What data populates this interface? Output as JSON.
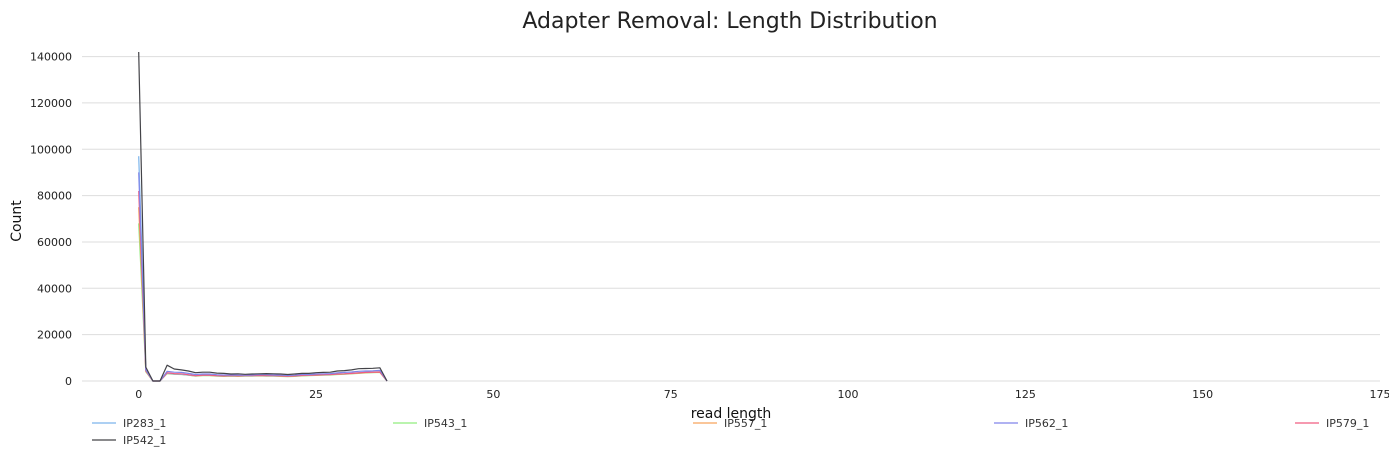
{
  "chart_data": {
    "type": "line",
    "title": "Adapter Removal: Length Distribution",
    "xlabel": "read length",
    "ylabel": "Count",
    "xlim": [
      -8,
      175
    ],
    "ylim": [
      0,
      145000
    ],
    "xticks": [
      0,
      25,
      50,
      75,
      100,
      125,
      150,
      175
    ],
    "yticks": [
      0,
      20000,
      40000,
      60000,
      80000,
      100000,
      120000,
      140000
    ],
    "grid": true,
    "legend_position": "bottom",
    "series": [
      {
        "name": "IP283_1",
        "color": "#7cb5ec",
        "x": [
          0,
          1,
          2,
          3,
          4,
          5,
          6,
          7,
          8,
          9,
          10,
          11,
          12,
          13,
          14,
          15,
          16,
          17,
          18,
          19,
          20,
          21,
          22,
          23,
          24,
          25,
          26,
          27,
          28,
          29,
          30,
          31,
          32,
          33,
          34,
          35
        ],
        "y": [
          97000,
          5000,
          0,
          0,
          3400,
          3000,
          2900,
          2600,
          2300,
          2500,
          2500,
          2300,
          2200,
          2300,
          2200,
          2300,
          2300,
          2400,
          2300,
          2300,
          2200,
          2100,
          2200,
          2400,
          2500,
          2600,
          2700,
          2800,
          3000,
          3100,
          3300,
          3600,
          3800,
          3900,
          4000,
          0
        ]
      },
      {
        "name": "IP542_1",
        "color": "#434348",
        "x": [
          0,
          1,
          2,
          3,
          4,
          5,
          6,
          7,
          8,
          9,
          10,
          11,
          12,
          13,
          14,
          15,
          16,
          17,
          18,
          19,
          20,
          21,
          22,
          23,
          24,
          25,
          26,
          27,
          28,
          29,
          30,
          31,
          32,
          33,
          34,
          35
        ],
        "y": [
          142000,
          6000,
          0,
          0,
          6800,
          5200,
          4800,
          4300,
          3600,
          3800,
          3800,
          3400,
          3300,
          3000,
          3100,
          2900,
          3000,
          3100,
          3200,
          3100,
          3000,
          2800,
          3000,
          3300,
          3300,
          3600,
          3700,
          3800,
          4300,
          4500,
          4800,
          5300,
          5400,
          5500,
          5700,
          0
        ]
      },
      {
        "name": "IP543_1",
        "color": "#90ed7d",
        "x": [
          0,
          1,
          2,
          3,
          4,
          5,
          6,
          7,
          8,
          9,
          10,
          11,
          12,
          13,
          14,
          15,
          16,
          17,
          18,
          19,
          20,
          21,
          22,
          23,
          24,
          25,
          26,
          27,
          28,
          29,
          30,
          31,
          32,
          33,
          34,
          35
        ],
        "y": [
          68000,
          4000,
          0,
          0,
          3200,
          2900,
          2800,
          2500,
          2100,
          2300,
          2300,
          2100,
          2000,
          2100,
          2000,
          2100,
          2100,
          2200,
          2100,
          2100,
          2000,
          1900,
          2000,
          2200,
          2300,
          2400,
          2500,
          2600,
          2800,
          2900,
          3100,
          3300,
          3500,
          3600,
          3700,
          0
        ]
      },
      {
        "name": "IP557_1",
        "color": "#f7a35c",
        "x": [
          0,
          1,
          2,
          3,
          4,
          5,
          6,
          7,
          8,
          9,
          10,
          11,
          12,
          13,
          14,
          15,
          16,
          17,
          18,
          19,
          20,
          21,
          22,
          23,
          24,
          25,
          26,
          27,
          28,
          29,
          30,
          31,
          32,
          33,
          34,
          35
        ],
        "y": [
          75000,
          4200,
          0,
          0,
          3300,
          3000,
          2900,
          2500,
          2200,
          2400,
          2400,
          2200,
          2100,
          2200,
          2100,
          2200,
          2200,
          2300,
          2200,
          2200,
          2100,
          2000,
          2100,
          2300,
          2400,
          2500,
          2600,
          2700,
          2900,
          3000,
          3200,
          3400,
          3600,
          3700,
          3800,
          0
        ]
      },
      {
        "name": "IP562_1",
        "color": "#8085e9",
        "x": [
          0,
          1,
          2,
          3,
          4,
          5,
          6,
          7,
          8,
          9,
          10,
          11,
          12,
          13,
          14,
          15,
          16,
          17,
          18,
          19,
          20,
          21,
          22,
          23,
          24,
          25,
          26,
          27,
          28,
          29,
          30,
          31,
          32,
          33,
          34,
          35
        ],
        "y": [
          90000,
          4800,
          0,
          0,
          4200,
          3800,
          3700,
          3300,
          2800,
          3000,
          3000,
          2700,
          2600,
          2600,
          2500,
          2500,
          2600,
          2700,
          2700,
          2600,
          2500,
          2400,
          2500,
          2800,
          2800,
          3000,
          3100,
          3200,
          3500,
          3700,
          3900,
          4200,
          4300,
          4400,
          4600,
          0
        ]
      },
      {
        "name": "IP579_1",
        "color": "#f15c80",
        "x": [
          0,
          1,
          2,
          3,
          4,
          5,
          6,
          7,
          8,
          9,
          10,
          11,
          12,
          13,
          14,
          15,
          16,
          17,
          18,
          19,
          20,
          21,
          22,
          23,
          24,
          25,
          26,
          27,
          28,
          29,
          30,
          31,
          32,
          33,
          34,
          35
        ],
        "y": [
          82000,
          4500,
          0,
          0,
          3600,
          3200,
          3100,
          2700,
          2300,
          2500,
          2500,
          2300,
          2200,
          2300,
          2200,
          2300,
          2300,
          2400,
          2300,
          2300,
          2200,
          2100,
          2200,
          2400,
          2500,
          2600,
          2700,
          2800,
          3000,
          3100,
          3300,
          3500,
          3700,
          3800,
          3900,
          0
        ]
      }
    ]
  }
}
